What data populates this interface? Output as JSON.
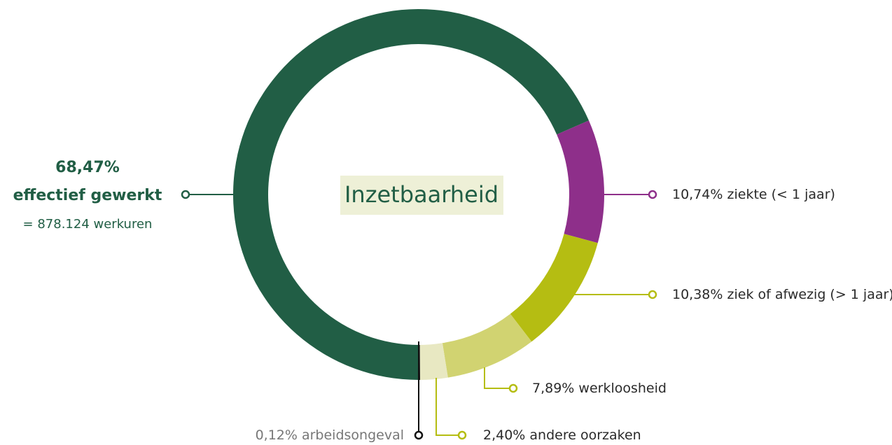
{
  "chart_data": {
    "type": "donut",
    "title": "Inzetbaarheid",
    "categories": [
      "effectief gewerkt",
      "ziekte (< 1 jaar)",
      "ziek of afwezig (> 1 jaar)",
      "werkloosheid",
      "andere oorzaken",
      "arbeidsongeval"
    ],
    "values": [
      68.47,
      10.74,
      10.38,
      7.89,
      2.4,
      0.12
    ],
    "value_labels": [
      "68,47%",
      "10,74%",
      "10,38%",
      "7,89%",
      "2,40%",
      "0,12%"
    ],
    "colors": [
      "#215e45",
      "#8e2f8a",
      "#b5bd12",
      "#d1d371",
      "#e8e8c2",
      "#111111"
    ],
    "annotation": "= 878.124 werkuren"
  }
}
